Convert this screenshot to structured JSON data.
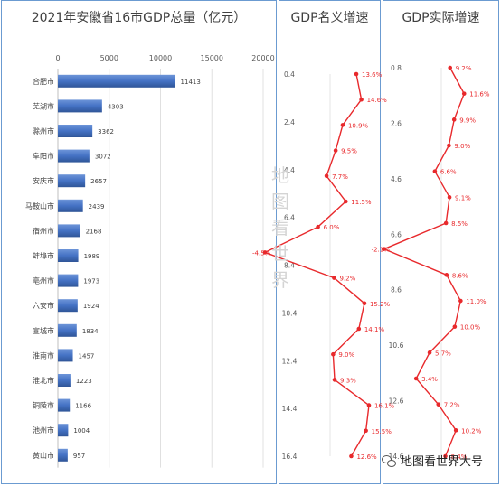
{
  "chart_data": [
    {
      "type": "bar",
      "orientation": "horizontal",
      "title": "2021年安徽省16市GDP总量（亿元）",
      "categories": [
        "合肥市",
        "芜湖市",
        "滁州市",
        "阜阳市",
        "安庆市",
        "马鞍山市",
        "宿州市",
        "蚌埠市",
        "亳州市",
        "六安市",
        "宣城市",
        "淮南市",
        "淮北市",
        "铜陵市",
        "池州市",
        "黄山市"
      ],
      "values": [
        11413,
        4303,
        3362,
        3072,
        2657,
        2439,
        2168,
        1989,
        1973,
        1924,
        1834,
        1457,
        1223,
        1166,
        1004,
        957
      ],
      "xlim": [
        0,
        20000
      ],
      "xticks": [
        "0",
        "5000",
        "10000",
        "15000",
        "20000"
      ],
      "bar_color": "#4472c4",
      "data_labels": true,
      "grid": true
    },
    {
      "type": "line",
      "title": "GDP名义增速",
      "values": [
        13.6,
        14.6,
        10.9,
        9.5,
        7.7,
        11.5,
        6.0,
        -4.5,
        9.2,
        15.2,
        14.1,
        9.0,
        9.3,
        16.1,
        15.5,
        12.6
      ],
      "labels": [
        "13.6%",
        "14.6%",
        "10.9%",
        "9.5%",
        "7.7%",
        "11.5%",
        "6.0%",
        "-4.5%",
        "9.2%",
        "15.2%",
        "14.1%",
        "9.0%",
        "9.3%",
        "16.1%",
        "15.5%",
        "12.6%"
      ],
      "yticks": [
        "0.4",
        "2.4",
        "4.4",
        "6.4",
        "8.4",
        "10.4",
        "12.4",
        "14.4",
        "16.4"
      ],
      "ylim": [
        0.4,
        16.4
      ],
      "color": "#e8292c"
    },
    {
      "type": "line",
      "title": "GDP实际增速",
      "values": [
        9.2,
        11.6,
        9.9,
        9.0,
        6.6,
        9.1,
        8.5,
        -2.1,
        8.6,
        11.0,
        10.0,
        5.7,
        3.4,
        7.2,
        10.2,
        8.4
      ],
      "labels": [
        "9.2%",
        "11.6%",
        "9.9%",
        "9.0%",
        "6.6%",
        "9.1%",
        "8.5%",
        "-2.1%",
        "8.6%",
        "11.0%",
        "10.0%",
        "5.7%",
        "3.4%",
        "7.2%",
        "10.2%",
        "8.4%"
      ],
      "yticks": [
        "0.8",
        "2.6",
        "4.6",
        "6.6",
        "8.6",
        "10.6",
        "12.6",
        "14.6"
      ],
      "ylim": [
        0.8,
        14.6
      ],
      "color": "#e8292c"
    }
  ],
  "watermark": [
    "地",
    "图",
    "看",
    "世",
    "界"
  ],
  "brand_text": "地图看世界大号"
}
